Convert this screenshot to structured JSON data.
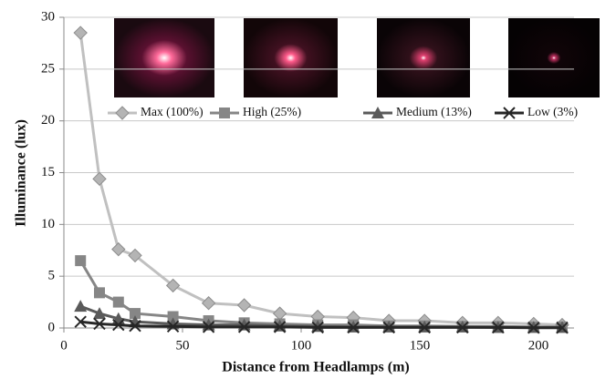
{
  "chart_data": {
    "type": "line",
    "x_label": "Distance from Headlamps (m)",
    "y_label": "Illuminance (lux)",
    "x": [
      7,
      15,
      23,
      30,
      46,
      61,
      76,
      91,
      107,
      122,
      137,
      152,
      168,
      183,
      198,
      210
    ],
    "series": [
      {
        "name": "Max (100%)",
        "color": "#c0c0c0",
        "marker": "diamond",
        "values": [
          28.5,
          14.4,
          7.6,
          7.0,
          4.1,
          2.4,
          2.2,
          1.4,
          1.1,
          1.0,
          0.7,
          0.7,
          0.5,
          0.5,
          0.4,
          0.3
        ]
      },
      {
        "name": "High (25%)",
        "color": "#868686",
        "marker": "square",
        "values": [
          6.5,
          3.4,
          2.5,
          1.4,
          1.1,
          0.7,
          0.5,
          0.4,
          0.3,
          0.3,
          0.2,
          0.2,
          0.15,
          0.15,
          0.1,
          0.1
        ]
      },
      {
        "name": "Medium (13%)",
        "color": "#5a5a5a",
        "marker": "triangle",
        "values": [
          2.1,
          1.4,
          0.9,
          0.6,
          0.4,
          0.3,
          0.3,
          0.2,
          0.15,
          0.1,
          0.1,
          0.1,
          0.1,
          0.05,
          0.05,
          0.05
        ]
      },
      {
        "name": "Low (3%)",
        "color": "#262626",
        "marker": "x",
        "values": [
          0.6,
          0.4,
          0.3,
          0.2,
          0.15,
          0.1,
          0.1,
          0.1,
          0.05,
          0.05,
          0.05,
          0.05,
          0.05,
          0.05,
          0.02,
          0.02
        ]
      }
    ],
    "xlim": [
      0,
      215
    ],
    "xticks": [
      0,
      50,
      100,
      150,
      200
    ],
    "ylim": [
      0,
      30
    ],
    "yticks": [
      0,
      5,
      10,
      15,
      20,
      25,
      30
    ],
    "grid": true
  }
}
